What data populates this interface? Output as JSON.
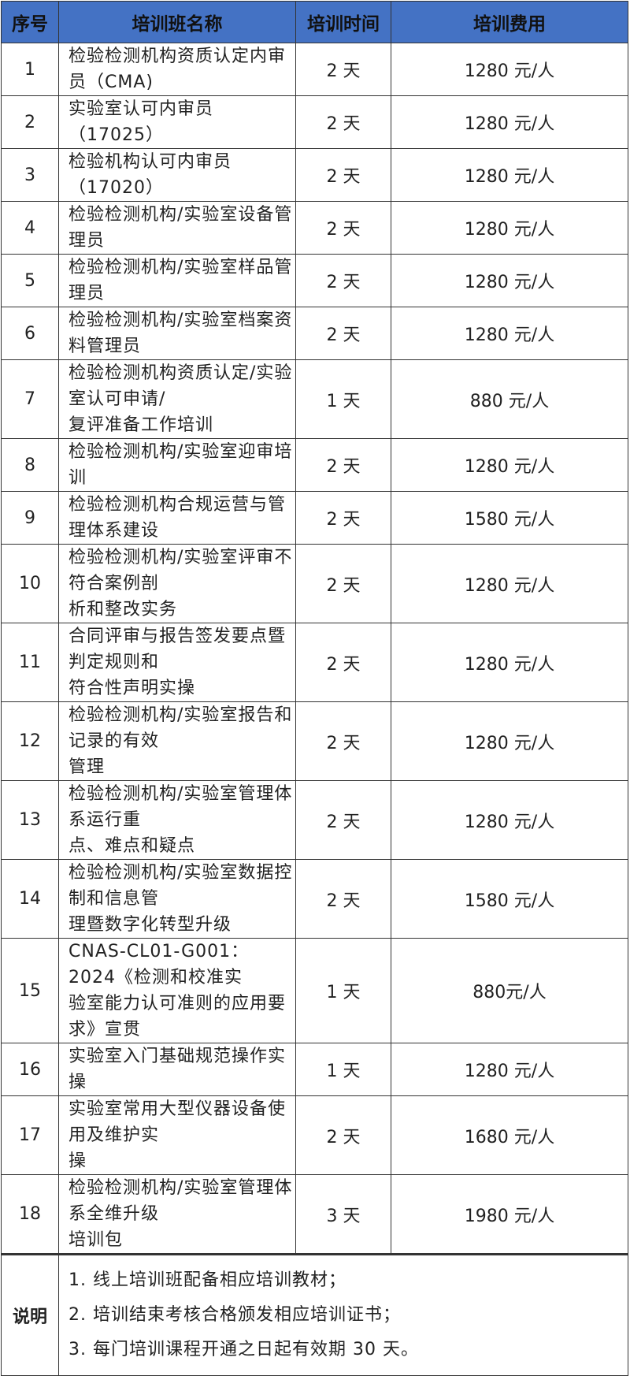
{
  "header": {
    "no": "序号",
    "name": "培训班名称",
    "duration": "培训时间",
    "fee": "培训费用"
  },
  "header_color": "#4472C4",
  "rows": [
    {
      "no": "1",
      "name": "检验检测机构资质认定内审员（CMA)",
      "duration": "2 天",
      "fee": "1280 元/人"
    },
    {
      "no": "2",
      "name": "实验室认可内审员（17025）",
      "duration": "2 天",
      "fee": "1280 元/人"
    },
    {
      "no": "3",
      "name": "检验机构认可内审员（17020）",
      "duration": "2 天",
      "fee": "1280 元/人"
    },
    {
      "no": "4",
      "name": "检验检测机构/实验室设备管理员",
      "duration": "2 天",
      "fee": "1280 元/人"
    },
    {
      "no": "5",
      "name": "检验检测机构/实验室样品管理员",
      "duration": "2 天",
      "fee": "1280 元/人"
    },
    {
      "no": "6",
      "name": "检验检测机构/实验室档案资料管理员",
      "duration": "2 天",
      "fee": "1280 元/人"
    },
    {
      "no": "7",
      "name": "检验检测机构资质认定/实验室认可申请/\n复评准备工作培训",
      "duration": "1 天",
      "fee": "880 元/人"
    },
    {
      "no": "8",
      "name": "检验检测机构/实验室迎审培训",
      "duration": "2 天",
      "fee": "1280 元/人"
    },
    {
      "no": "9",
      "name": "检验检测机构合规运营与管理体系建设",
      "duration": "2 天",
      "fee": "1580 元/人"
    },
    {
      "no": "10",
      "name": "检验检测机构/实验室评审不符合案例剖\n析和整改实务",
      "duration": "2 天",
      "fee": "1280 元/人"
    },
    {
      "no": "11",
      "name": "合同评审与报告签发要点暨判定规则和\n符合性声明实操",
      "duration": "2 天",
      "fee": "1280 元/人"
    },
    {
      "no": "12",
      "name": "检验检测机构/实验室报告和记录的有效\n管理",
      "duration": "2 天",
      "fee": "1280 元/人"
    },
    {
      "no": "13",
      "name": "检验检测机构/实验室管理体系运行重\n点、难点和疑点",
      "duration": "2 天",
      "fee": "1280 元/人"
    },
    {
      "no": "14",
      "name": "检验检测机构/实验室数据控制和信息管\n理暨数字化转型升级",
      "duration": "2 天",
      "fee": "1580 元/人"
    },
    {
      "no": "15",
      "name": "CNAS-CL01-G001：2024《检测和校准实\n验室能力认可准则的应用要求》宣贯",
      "duration": "1 天",
      "fee": "880元/人"
    },
    {
      "no": "16",
      "name": "实验室入门基础规范操作实操",
      "duration": "1 天",
      "fee": "1280 元/人"
    },
    {
      "no": "17",
      "name": "实验室常用大型仪器设备使用及维护实\n操",
      "duration": "2 天",
      "fee": "1680 元/人"
    },
    {
      "no": "18",
      "name": "检验检测机构/实验室管理体系全维升级\n培训包",
      "duration": "3 天",
      "fee": "1980 元/人"
    }
  ],
  "notes": {
    "label": "说明",
    "items": [
      "1. 线上培训班配备相应培训教材；",
      "2. 培训结束考核合格颁发相应培训证书；",
      "3. 每门培训课程开通之日起有效期 30 天。"
    ]
  }
}
